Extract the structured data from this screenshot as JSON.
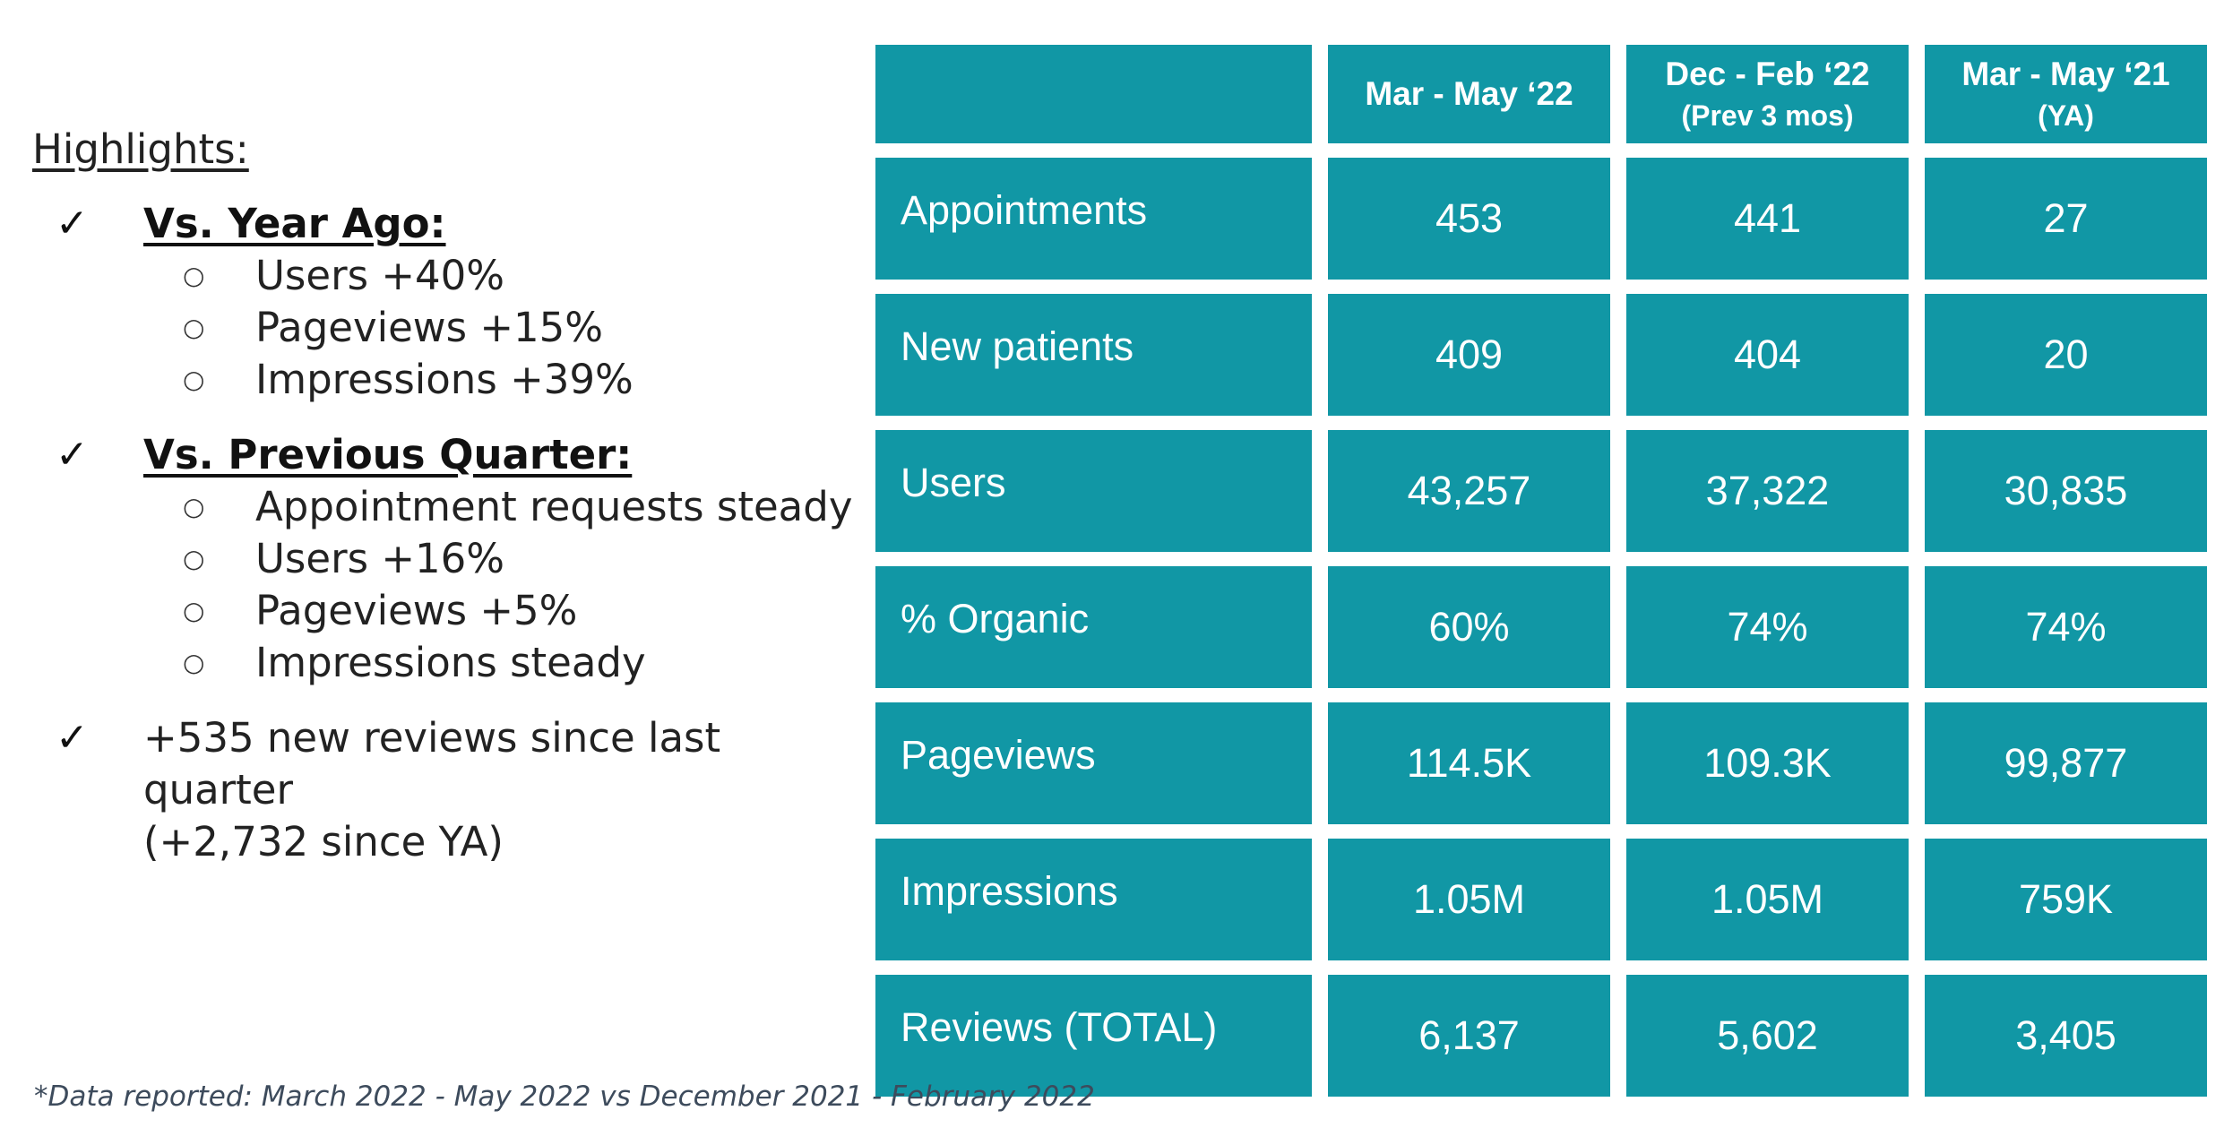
{
  "highlights": {
    "title": "Highlights:",
    "check_glyph": "✓",
    "bullet_glyph": "○",
    "sections": [
      {
        "heading": "Vs. Year Ago:",
        "items": [
          "Users +40%",
          "Pageviews +15%",
          "Impressions +39%"
        ]
      },
      {
        "heading": "Vs. Previous Quarter:",
        "items": [
          "Appointment requests steady",
          "Users +16%",
          "Pageviews +5%",
          "Impressions steady"
        ]
      }
    ],
    "reviews_note_line1": "+535 new reviews since last quarter",
    "reviews_note_line2": "(+2,732 since YA)"
  },
  "table": {
    "header_bg": "#1197a5",
    "columns": [
      {
        "label": "",
        "sub": ""
      },
      {
        "label": "Mar - May ‘22",
        "sub": ""
      },
      {
        "label": "Dec - Feb ‘22",
        "sub": "(Prev 3 mos)"
      },
      {
        "label": "Mar - May ‘21",
        "sub": "(YA)"
      }
    ],
    "rows": [
      {
        "label": "Appointments",
        "values": [
          "453",
          "441",
          "27"
        ]
      },
      {
        "label": "New patients",
        "values": [
          "409",
          "404",
          "20"
        ]
      },
      {
        "label": "Users",
        "values": [
          "43,257",
          "37,322",
          "30,835"
        ]
      },
      {
        "label": "% Organic",
        "values": [
          "60%",
          "74%",
          "74%"
        ]
      },
      {
        "label": "Pageviews",
        "values": [
          "114.5K",
          "109.3K",
          "99,877"
        ]
      },
      {
        "label": "Impressions",
        "values": [
          "1.05M",
          "1.05M",
          "759K"
        ]
      },
      {
        "label": "Reviews (TOTAL)",
        "values": [
          "6,137",
          "5,602",
          "3,405"
        ]
      }
    ]
  },
  "footnote": "*Data reported: March 2022 - May 2022 vs December 2021 - February 2022"
}
